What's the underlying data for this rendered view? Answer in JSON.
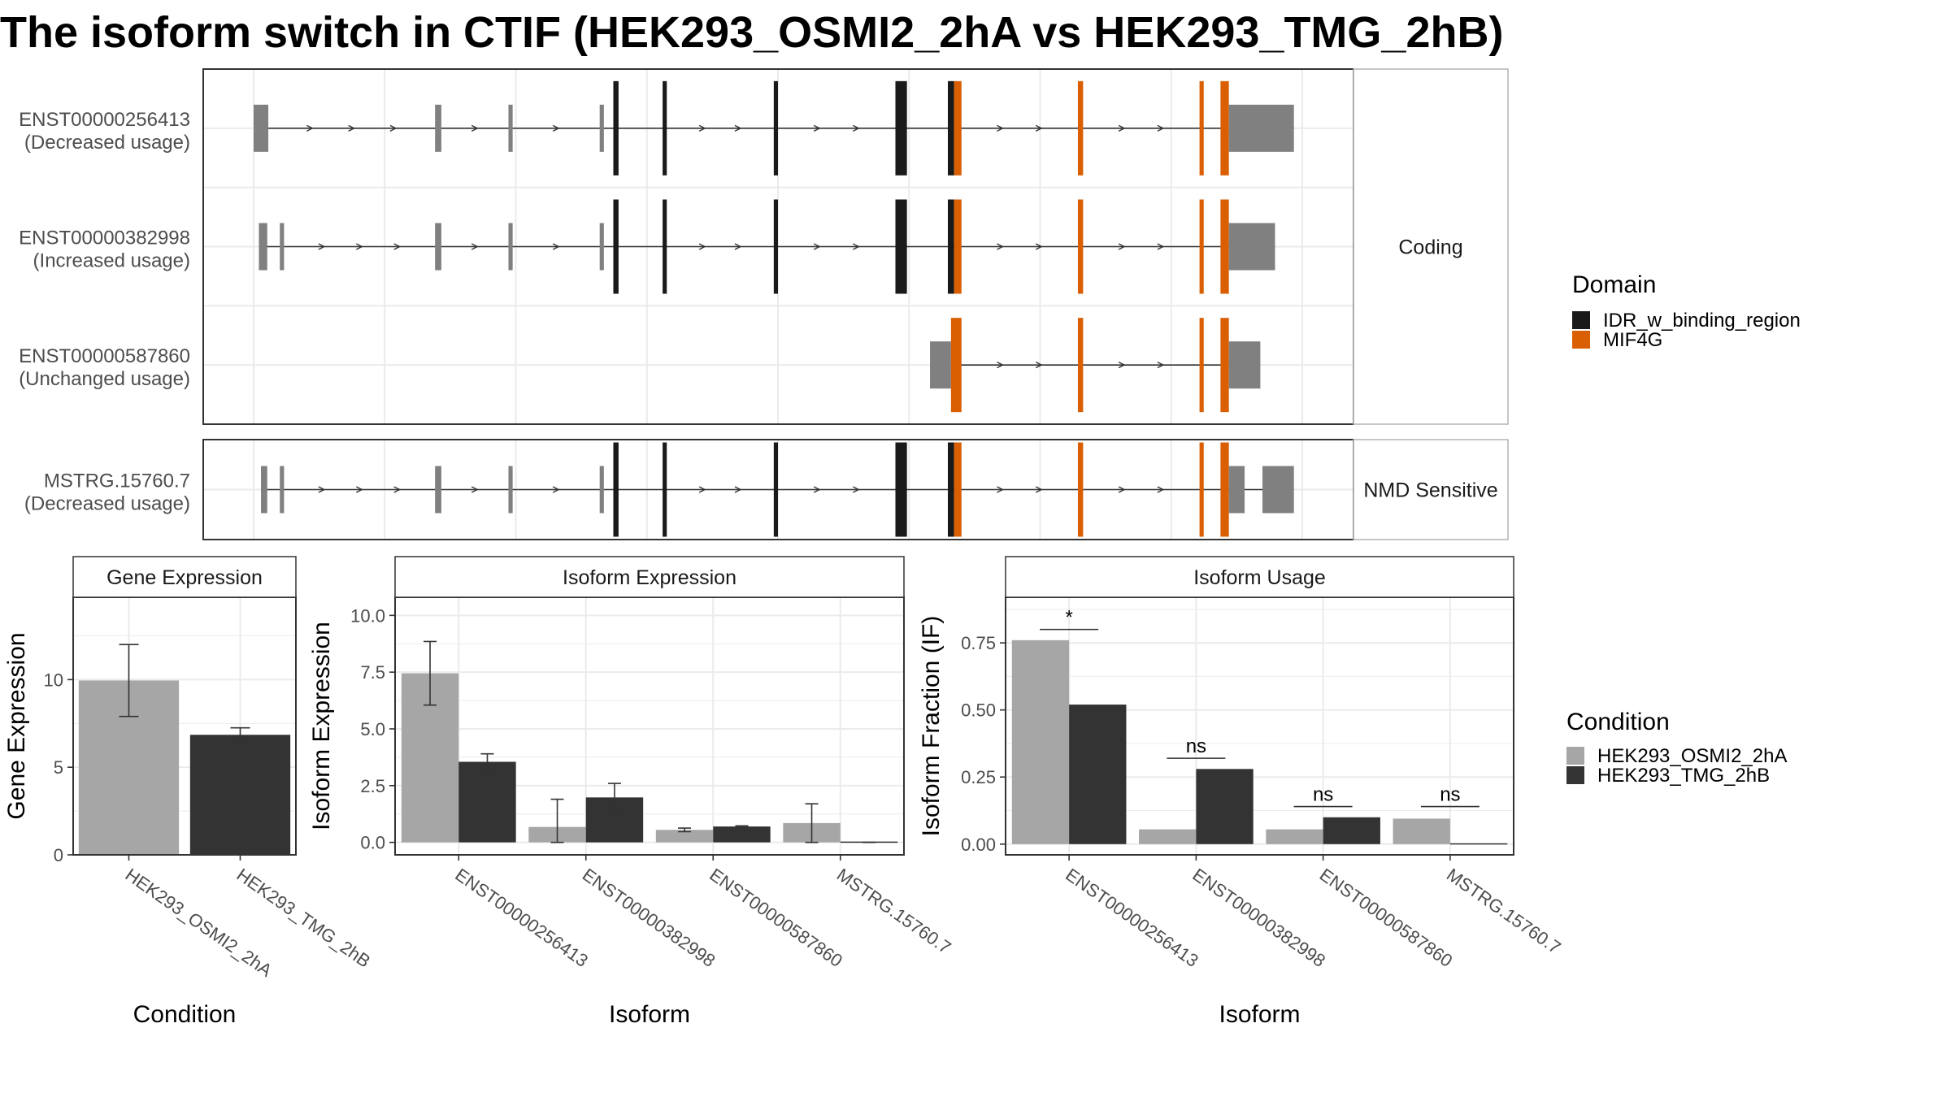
{
  "figure": {
    "title": "The isoform switch in CTIF (HEK293_OSMI2_2hA vs HEK293_TMG_2hB)"
  },
  "structure": {
    "groups": [
      {
        "label": "Coding",
        "transcripts": [
          {
            "id": "ENST00000256413",
            "usage": "(Decreased usage)",
            "segments": [
              {
                "s": 0.0,
                "e": 1.4,
                "type": "utr"
              },
              {
                "s": 17.3,
                "e": 17.9,
                "type": "utr"
              },
              {
                "s": 24.3,
                "e": 24.7,
                "type": "utr"
              },
              {
                "s": 33.0,
                "e": 33.4,
                "type": "utr"
              },
              {
                "s": 34.3,
                "e": 34.8,
                "type": "IDR_w_binding_region"
              },
              {
                "s": 39.0,
                "e": 39.4,
                "type": "IDR_w_binding_region"
              },
              {
                "s": 49.6,
                "e": 50.0,
                "type": "IDR_w_binding_region"
              },
              {
                "s": 61.2,
                "e": 62.3,
                "type": "IDR_w_binding_region"
              },
              {
                "s": 66.2,
                "e": 66.8,
                "type": "IDR_w_binding_region"
              },
              {
                "s": 66.8,
                "e": 67.5,
                "type": "MIF4G"
              },
              {
                "s": 78.6,
                "e": 79.1,
                "type": "MIF4G"
              },
              {
                "s": 90.2,
                "e": 90.6,
                "type": "MIF4G"
              },
              {
                "s": 92.2,
                "e": 93.0,
                "type": "MIF4G"
              },
              {
                "s": 93.0,
                "e": 99.2,
                "type": "utr"
              }
            ]
          },
          {
            "id": "ENST00000382998",
            "usage": "(Increased usage)",
            "segments": [
              {
                "s": 0.5,
                "e": 1.3,
                "type": "utr"
              },
              {
                "s": 2.5,
                "e": 2.9,
                "type": "utr"
              },
              {
                "s": 17.3,
                "e": 17.9,
                "type": "utr"
              },
              {
                "s": 24.3,
                "e": 24.7,
                "type": "utr"
              },
              {
                "s": 33.0,
                "e": 33.4,
                "type": "utr"
              },
              {
                "s": 34.3,
                "e": 34.8,
                "type": "IDR_w_binding_region"
              },
              {
                "s": 39.0,
                "e": 39.4,
                "type": "IDR_w_binding_region"
              },
              {
                "s": 49.6,
                "e": 50.0,
                "type": "IDR_w_binding_region"
              },
              {
                "s": 61.2,
                "e": 62.3,
                "type": "IDR_w_binding_region"
              },
              {
                "s": 66.2,
                "e": 66.8,
                "type": "IDR_w_binding_region"
              },
              {
                "s": 66.8,
                "e": 67.5,
                "type": "MIF4G"
              },
              {
                "s": 78.6,
                "e": 79.1,
                "type": "MIF4G"
              },
              {
                "s": 90.2,
                "e": 90.6,
                "type": "MIF4G"
              },
              {
                "s": 92.2,
                "e": 93.0,
                "type": "MIF4G"
              },
              {
                "s": 93.0,
                "e": 97.4,
                "type": "utr"
              }
            ]
          },
          {
            "id": "ENST00000587860",
            "usage": "(Unchanged usage)",
            "segments": [
              {
                "s": 64.5,
                "e": 66.5,
                "type": "utr"
              },
              {
                "s": 66.5,
                "e": 67.5,
                "type": "MIF4G"
              },
              {
                "s": 78.6,
                "e": 79.1,
                "type": "MIF4G"
              },
              {
                "s": 90.2,
                "e": 90.6,
                "type": "MIF4G"
              },
              {
                "s": 92.2,
                "e": 93.0,
                "type": "MIF4G"
              },
              {
                "s": 93.0,
                "e": 96.0,
                "type": "utr"
              }
            ]
          }
        ]
      },
      {
        "label": "NMD Sensitive",
        "transcripts": [
          {
            "id": "MSTRG.15760.7",
            "usage": "(Decreased usage)",
            "segments": [
              {
                "s": 0.7,
                "e": 1.3,
                "type": "utr"
              },
              {
                "s": 2.5,
                "e": 2.9,
                "type": "utr"
              },
              {
                "s": 17.3,
                "e": 17.9,
                "type": "utr"
              },
              {
                "s": 24.3,
                "e": 24.7,
                "type": "utr"
              },
              {
                "s": 33.0,
                "e": 33.4,
                "type": "utr"
              },
              {
                "s": 34.3,
                "e": 34.8,
                "type": "IDR_w_binding_region"
              },
              {
                "s": 39.0,
                "e": 39.4,
                "type": "IDR_w_binding_region"
              },
              {
                "s": 49.6,
                "e": 50.0,
                "type": "IDR_w_binding_region"
              },
              {
                "s": 61.2,
                "e": 62.3,
                "type": "IDR_w_binding_region"
              },
              {
                "s": 66.2,
                "e": 66.8,
                "type": "IDR_w_binding_region"
              },
              {
                "s": 66.8,
                "e": 67.5,
                "type": "MIF4G"
              },
              {
                "s": 78.6,
                "e": 79.1,
                "type": "MIF4G"
              },
              {
                "s": 90.2,
                "e": 90.6,
                "type": "MIF4G"
              },
              {
                "s": 92.2,
                "e": 93.0,
                "type": "MIF4G"
              },
              {
                "s": 93.0,
                "e": 94.5,
                "type": "utr"
              },
              {
                "s": 96.2,
                "e": 99.2,
                "type": "utr"
              }
            ]
          }
        ]
      }
    ]
  },
  "legends": {
    "domain": {
      "title": "Domain",
      "entries": [
        {
          "label": "IDR_w_binding_region",
          "color": "#1a1a1a"
        },
        {
          "label": "MIF4G",
          "color": "#d95f02"
        }
      ]
    },
    "condition": {
      "title": "Condition",
      "entries": [
        {
          "label": "HEK293_OSMI2_2hA",
          "color": "#a6a6a6"
        },
        {
          "label": "HEK293_TMG_2hB",
          "color": "#333333"
        }
      ]
    }
  },
  "colors": {
    "utr": "#808080",
    "IDR_w_binding_region": "#1a1a1a",
    "MIF4G": "#d95f02",
    "cond_a": "#a6a6a6",
    "cond_b": "#333333"
  },
  "chart_data": [
    {
      "type": "bar",
      "title": "Gene Expression",
      "xlabel": "Condition",
      "ylabel": "Gene Expression",
      "categories": [
        "HEK293_OSMI2_2hA",
        "HEK293_TMG_2hB"
      ],
      "values": [
        9.95,
        6.85
      ],
      "err_low": [
        7.9,
        6.45
      ],
      "err_high": [
        12.0,
        7.25
      ],
      "ylim": [
        0,
        14.7
      ],
      "yticks": [
        0,
        5,
        10
      ],
      "ytick_labels": [
        "0",
        "5",
        "10"
      ]
    },
    {
      "type": "bar",
      "title": "Isoform Expression",
      "xlabel": "Isoform",
      "ylabel": "Isoform Expression",
      "categories": [
        "ENST00000256413",
        "ENST00000382998",
        "ENST00000587860",
        "MSTRG.15760.7"
      ],
      "series": [
        {
          "name": "HEK293_OSMI2_2hA",
          "values": [
            7.45,
            0.68,
            0.55,
            0.85
          ],
          "err_low": [
            6.05,
            0.0,
            0.47,
            0.0
          ],
          "err_high": [
            8.85,
            1.9,
            0.63,
            1.7
          ]
        },
        {
          "name": "HEK293_TMG_2hB",
          "values": [
            3.55,
            1.98,
            0.7,
            0.0
          ],
          "err_low": [
            3.2,
            1.35,
            0.67,
            0.0
          ],
          "err_high": [
            3.9,
            2.6,
            0.73,
            0.0
          ]
        }
      ],
      "ylim": [
        -0.55,
        10.8
      ],
      "yticks": [
        0,
        2.5,
        5,
        7.5,
        10
      ],
      "ytick_labels": [
        "0.0",
        "2.5",
        "5.0",
        "7.5",
        "10.0"
      ]
    },
    {
      "type": "bar",
      "title": "Isoform Usage",
      "xlabel": "Isoform",
      "ylabel": "Isoform Fraction (IF)",
      "categories": [
        "ENST00000256413",
        "ENST00000382998",
        "ENST00000587860",
        "MSTRG.15760.7"
      ],
      "series": [
        {
          "name": "HEK293_OSMI2_2hA",
          "values": [
            0.76,
            0.055,
            0.055,
            0.095
          ]
        },
        {
          "name": "HEK293_TMG_2hB",
          "values": [
            0.52,
            0.28,
            0.1,
            0.0
          ]
        }
      ],
      "significance": [
        "*",
        "ns",
        "ns",
        "ns"
      ],
      "sig_y": [
        0.8,
        0.32,
        0.14,
        0.14
      ],
      "ylim": [
        -0.04,
        0.92
      ],
      "yticks": [
        0,
        0.25,
        0.5,
        0.75
      ],
      "ytick_labels": [
        "0.00",
        "0.25",
        "0.50",
        "0.75"
      ]
    }
  ]
}
